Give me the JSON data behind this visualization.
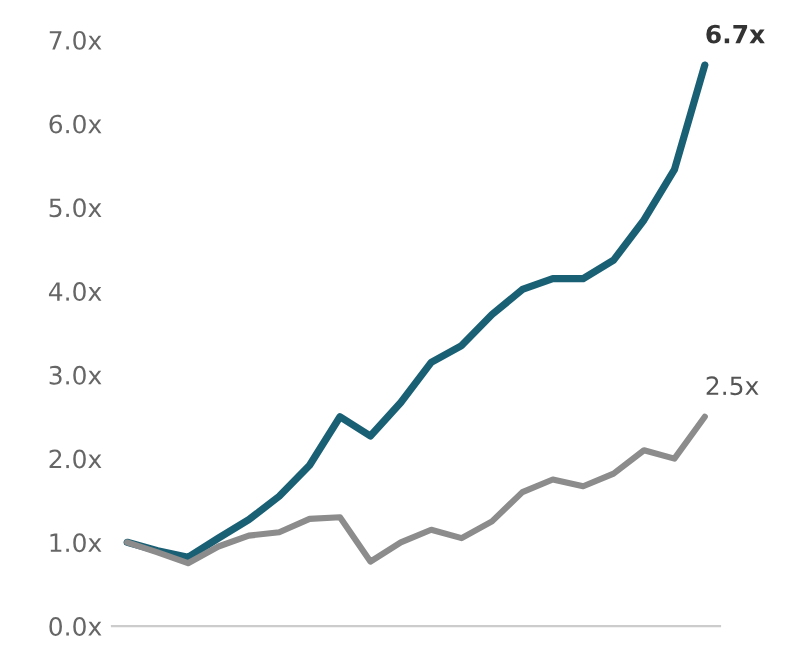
{
  "chart_data": {
    "type": "line",
    "categories": [
      null,
      null,
      null,
      null,
      null,
      null,
      null,
      null,
      null,
      null,
      null,
      null,
      null,
      null,
      null,
      null,
      null,
      null,
      null,
      null
    ],
    "series": [
      {
        "color": "#1a6075",
        "values": [
          1.0,
          0.9,
          0.82,
          1.05,
          1.27,
          1.55,
          1.92,
          2.5,
          2.27,
          2.67,
          3.15,
          3.35,
          3.72,
          4.02,
          4.15,
          4.15,
          4.37,
          4.85,
          5.45,
          6.7
        ],
        "value_labels": [
          null,
          null,
          null,
          null,
          null,
          null,
          null,
          null,
          null,
          null,
          null,
          null,
          null,
          null,
          null,
          null,
          null,
          null,
          null,
          "6.7x"
        ]
      },
      {
        "color": "#8c8c8c",
        "values": [
          1.0,
          0.88,
          0.75,
          0.95,
          1.08,
          1.12,
          1.28,
          1.3,
          0.77,
          1.0,
          1.15,
          1.05,
          1.25,
          1.6,
          1.75,
          1.67,
          1.82,
          2.1,
          2.0,
          2.5
        ],
        "value_labels": [
          null,
          null,
          null,
          null,
          null,
          null,
          null,
          null,
          null,
          null,
          null,
          null,
          null,
          null,
          null,
          null,
          null,
          null,
          null,
          "2.5x"
        ]
      }
    ],
    "ylim": [
      0,
      7
    ],
    "yticks": [
      {
        "value": 0,
        "label": "0.0x"
      },
      {
        "value": 1,
        "label": "1.0x"
      },
      {
        "value": 2,
        "label": "2.0x"
      },
      {
        "value": 3,
        "label": "3.0x"
      },
      {
        "value": 4,
        "label": "4.0x"
      },
      {
        "value": 5,
        "label": "5.0x"
      },
      {
        "value": 6,
        "label": "6.0x"
      },
      {
        "value": 7,
        "label": "7.0x"
      }
    ],
    "grid": false,
    "legend": false,
    "marker": "none",
    "line_style": "solid"
  }
}
